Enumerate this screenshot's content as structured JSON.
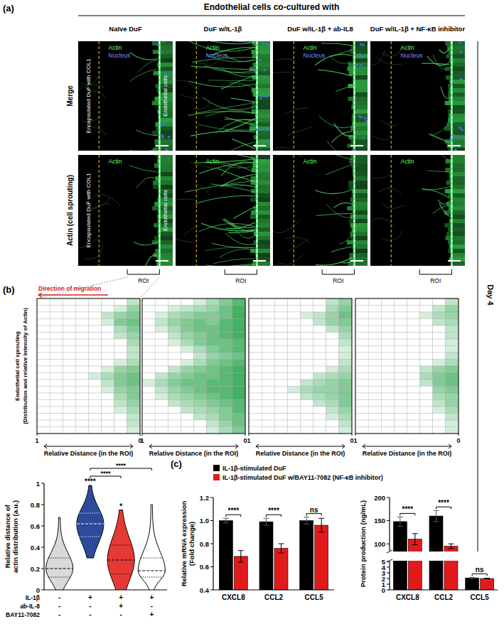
{
  "figure": {
    "title": "Endothelial cells co-cultured with",
    "panel_labels": [
      "(a)",
      "(b)",
      "(c)"
    ],
    "columns": [
      "Naïve DuF",
      "DuF w/IL-1β",
      "DuF w/IL-1β + ab-IL8",
      "DuF w/IL-1β + NF-κB inhibitor"
    ],
    "rows": [
      "Merge",
      "Actin (cell sprouting)"
    ],
    "channels": [
      "Actin",
      "Nucleus"
    ],
    "left_region": "Encapsulated DuF with COL1",
    "right_region": "Endothelial cells",
    "roi": "ROI",
    "timepoint": "Day 4"
  },
  "chart_data": [
    {
      "type": "heatmap",
      "color": "#2ea84f",
      "zlim": [
        0,
        1
      ],
      "xlim": [
        1,
        0
      ],
      "xticks": [
        1,
        0
      ],
      "xlabel": "Relative Distance (in the ROI)",
      "ylabel": [
        "Endothelial cell sprouting",
        "(Distribution and relative intensity of Actin)"
      ],
      "annotation": "Direction of migration",
      "cells": [
        [
          0,
          0,
          0,
          0,
          0,
          0,
          0,
          0.3
        ],
        [
          0,
          0,
          0,
          0,
          0,
          0,
          0.2,
          0.5
        ],
        [
          0,
          0,
          0,
          0,
          0,
          0.3,
          0.5,
          0.6
        ],
        [
          0,
          0,
          0,
          0,
          0,
          0.2,
          0.6,
          0.7
        ],
        [
          0,
          0,
          0,
          0,
          0,
          0,
          0.4,
          0.6
        ],
        [
          0,
          0,
          0,
          0,
          0,
          0,
          0.3,
          0.5
        ],
        [
          0,
          0,
          0,
          0,
          0,
          0,
          0,
          0.4
        ],
        [
          0,
          0,
          0,
          0,
          0,
          0,
          0,
          0.3
        ],
        [
          0,
          0,
          0,
          0,
          0,
          0,
          0,
          0.3
        ],
        [
          0,
          0,
          0,
          0,
          0,
          0,
          0.2,
          0.4
        ],
        [
          0,
          0,
          0,
          0,
          0,
          0.2,
          0.5,
          0.6
        ],
        [
          0,
          0,
          0,
          0,
          0.2,
          0.4,
          0.6,
          0.7
        ],
        [
          0,
          0,
          0,
          0,
          0,
          0.3,
          0.6,
          0.7
        ],
        [
          0,
          0,
          0,
          0,
          0,
          0.2,
          0.5,
          0.6
        ],
        [
          0,
          0,
          0,
          0,
          0,
          0,
          0.4,
          0.6
        ],
        [
          0,
          0,
          0,
          0,
          0,
          0,
          0.3,
          0.5
        ],
        [
          0,
          0,
          0,
          0,
          0,
          0,
          0.2,
          0.4
        ],
        [
          0,
          0,
          0,
          0,
          0,
          0,
          0,
          0.3
        ],
        [
          0,
          0,
          0,
          0,
          0,
          0,
          0,
          0.3
        ],
        [
          0,
          0,
          0,
          0,
          0,
          0,
          0,
          0.2
        ]
      ]
    },
    {
      "type": "heatmap",
      "color": "#2ea84f",
      "zlim": [
        0,
        1
      ],
      "xlim": [
        1,
        0
      ],
      "xticks": [
        1,
        0
      ],
      "xlabel": "Relative Distance (in the ROI)",
      "cells": [
        [
          0,
          0,
          0,
          0,
          0.2,
          0.4,
          0.6,
          0.8
        ],
        [
          0,
          0,
          0.2,
          0.3,
          0.4,
          0.5,
          0.7,
          0.9
        ],
        [
          0,
          0.2,
          0.4,
          0.5,
          0.6,
          0.6,
          0.7,
          0.9
        ],
        [
          0,
          0.3,
          0.5,
          0.6,
          0.7,
          0.6,
          0.8,
          0.9
        ],
        [
          0,
          0.2,
          0.4,
          0.6,
          0.7,
          0.7,
          0.8,
          0.9
        ],
        [
          0,
          0,
          0.3,
          0.5,
          0.6,
          0.7,
          0.8,
          0.9
        ],
        [
          0,
          0,
          0.2,
          0.4,
          0.6,
          0.7,
          0.7,
          0.8
        ],
        [
          0,
          0,
          0,
          0.2,
          0.4,
          0.6,
          0.7,
          0.8
        ],
        [
          0,
          0,
          0,
          0,
          0.3,
          0.5,
          0.6,
          0.7
        ],
        [
          0,
          0,
          0,
          0.2,
          0.4,
          0.6,
          0.7,
          0.8
        ],
        [
          0,
          0,
          0.3,
          0.5,
          0.6,
          0.7,
          0.8,
          0.9
        ],
        [
          0,
          0.3,
          0.5,
          0.6,
          0.7,
          0.7,
          0.8,
          0.9
        ],
        [
          0.2,
          0.4,
          0.6,
          0.7,
          0.7,
          0.8,
          0.8,
          0.9
        ],
        [
          0,
          0.3,
          0.5,
          0.6,
          0.7,
          0.8,
          0.8,
          0.9
        ],
        [
          0,
          0.2,
          0.4,
          0.5,
          0.6,
          0.7,
          0.8,
          0.9
        ],
        [
          0,
          0,
          0.3,
          0.4,
          0.5,
          0.6,
          0.7,
          0.8
        ],
        [
          0,
          0,
          0,
          0.3,
          0.4,
          0.5,
          0.6,
          0.8
        ],
        [
          0,
          0,
          0,
          0,
          0.3,
          0.4,
          0.6,
          0.7
        ],
        [
          0,
          0,
          0,
          0,
          0,
          0.3,
          0.5,
          0.7
        ],
        [
          0,
          0,
          0,
          0,
          0,
          0.2,
          0.4,
          0.6
        ]
      ]
    },
    {
      "type": "heatmap",
      "color": "#2ea84f",
      "zlim": [
        0,
        1
      ],
      "xlim": [
        1,
        0
      ],
      "xticks": [
        1,
        0
      ],
      "xlabel": "Relative Distance (in the ROI)",
      "cells": [
        [
          0,
          0,
          0,
          0,
          0,
          0,
          0.3,
          0.5
        ],
        [
          0,
          0,
          0,
          0,
          0,
          0,
          0.4,
          0.6
        ],
        [
          0,
          0,
          0,
          0,
          0.2,
          0.3,
          0.5,
          0.7
        ],
        [
          0,
          0,
          0,
          0,
          0,
          0.3,
          0.5,
          0.6
        ],
        [
          0,
          0,
          0,
          0,
          0,
          0,
          0.3,
          0.5
        ],
        [
          0,
          0,
          0,
          0,
          0,
          0,
          0,
          0.4
        ],
        [
          0,
          0,
          0,
          0,
          0,
          0,
          0,
          0.3
        ],
        [
          0,
          0,
          0,
          0,
          0,
          0,
          0,
          0.2
        ],
        [
          0,
          0,
          0,
          0,
          0,
          0,
          0,
          0.2
        ],
        [
          0,
          0,
          0,
          0,
          0,
          0,
          0,
          0.3
        ],
        [
          0,
          0,
          0,
          0,
          0,
          0,
          0.2,
          0.4
        ],
        [
          0,
          0,
          0,
          0,
          0,
          0.3,
          0.4,
          0.5
        ],
        [
          0,
          0,
          0,
          0,
          0.3,
          0.4,
          0.5,
          0.6
        ],
        [
          0,
          0,
          0,
          0.2,
          0.4,
          0.5,
          0.5,
          0.6
        ],
        [
          0,
          0,
          0,
          0,
          0.3,
          0.4,
          0.5,
          0.6
        ],
        [
          0,
          0,
          0,
          0,
          0,
          0.3,
          0.4,
          0.6
        ],
        [
          0,
          0,
          0,
          0,
          0,
          0,
          0.3,
          0.5
        ],
        [
          0,
          0,
          0,
          0,
          0,
          0,
          0.2,
          0.4
        ],
        [
          0,
          0,
          0,
          0,
          0,
          0,
          0,
          0.3
        ],
        [
          0,
          0,
          0,
          0,
          0,
          0,
          0,
          0.2
        ]
      ]
    },
    {
      "type": "heatmap",
      "color": "#2ea84f",
      "zlim": [
        0,
        1
      ],
      "xlim": [
        1,
        0
      ],
      "xticks": [
        1,
        0
      ],
      "xlabel": "Relative Distance (in the ROI)",
      "cells": [
        [
          0,
          0,
          0,
          0,
          0,
          0,
          0,
          0.3
        ],
        [
          0,
          0,
          0,
          0,
          0,
          0,
          0.3,
          0.5
        ],
        [
          0,
          0,
          0,
          0,
          0,
          0.2,
          0.4,
          0.5
        ],
        [
          0,
          0,
          0,
          0,
          0,
          0,
          0.3,
          0.4
        ],
        [
          0,
          0,
          0,
          0,
          0,
          0,
          0,
          0.3
        ],
        [
          0,
          0,
          0,
          0,
          0,
          0,
          0,
          0.3
        ],
        [
          0,
          0,
          0,
          0,
          0,
          0,
          0,
          0.2
        ],
        [
          0,
          0,
          0,
          0,
          0,
          0,
          0,
          0.2
        ],
        [
          0,
          0,
          0,
          0,
          0,
          0,
          0,
          0.3
        ],
        [
          0,
          0,
          0,
          0,
          0,
          0,
          0.2,
          0.4
        ],
        [
          0,
          0,
          0,
          0,
          0,
          0.3,
          0.5,
          0.6
        ],
        [
          0,
          0,
          0,
          0,
          0,
          0.4,
          0.6,
          0.7
        ],
        [
          0,
          0,
          0,
          0,
          0,
          0.3,
          0.6,
          0.7
        ],
        [
          0,
          0,
          0,
          0,
          0,
          0,
          0.5,
          0.6
        ],
        [
          0,
          0,
          0,
          0,
          0,
          0,
          0.4,
          0.5
        ],
        [
          0,
          0,
          0,
          0,
          0,
          0,
          0.3,
          0.5
        ],
        [
          0,
          0,
          0,
          0,
          0,
          0,
          0.2,
          0.4
        ],
        [
          0,
          0,
          0,
          0,
          0,
          0,
          0,
          0.3
        ],
        [
          0,
          0,
          0,
          0,
          0,
          0,
          0,
          0.2
        ],
        [
          0,
          0,
          0,
          0,
          0,
          0,
          0,
          0.2
        ]
      ]
    },
    {
      "type": "violin",
      "ylim": [
        0,
        1
      ],
      "yticks": [
        0,
        0.2,
        0.4,
        0.6,
        0.8,
        1
      ],
      "ylabel": [
        "Relative distance of",
        "actin distribution (a.u.)"
      ],
      "violins": [
        {
          "color": "#d9d9d9",
          "min": 0,
          "q1": 0.12,
          "median": 0.2,
          "q3": 0.3,
          "max": 0.68
        },
        {
          "color": "#2d4b9b",
          "min": 0.3,
          "q1": 0.5,
          "median": 0.62,
          "q3": 0.72,
          "max": 0.98
        },
        {
          "color": "#e53935",
          "min": 0,
          "q1": 0.15,
          "median": 0.28,
          "q3": 0.42,
          "max": 0.75
        },
        {
          "color": "#ffffff",
          "min": 0,
          "q1": 0.12,
          "median": 0.18,
          "q3": 0.3,
          "max": 0.8
        }
      ],
      "conditions": [
        {
          "label": "IL-1β",
          "values": [
            "-",
            "+",
            "+",
            "+"
          ]
        },
        {
          "label": "ab-IL-8",
          "values": [
            "-",
            "-",
            "+",
            "-"
          ]
        },
        {
          "label": "BAY11-7082",
          "values": [
            "-",
            "-",
            "-",
            "+"
          ]
        }
      ],
      "annotations": [
        {
          "text": "****",
          "category": 1
        },
        {
          "text": "*",
          "category": 2
        }
      ],
      "comparisons": [
        {
          "from": 1,
          "to": 2,
          "text": "****"
        },
        {
          "from": 1,
          "to": 3,
          "text": "****"
        }
      ]
    },
    {
      "type": "bar",
      "categories": [
        "CXCL8",
        "CCL2",
        "CCL5"
      ],
      "ylim": [
        0.4,
        1.2
      ],
      "yticks": [
        0.4,
        0.6,
        0.8,
        {
          "value": 1,
          "label": "1.0"
        },
        1.2
      ],
      "ylabel": [
        "Relative mRNA expression",
        "(Fold change)"
      ],
      "legend": "top",
      "series": [
        {
          "name": "IL-1β-stimulated DuF",
          "color": "#000000",
          "values": [
            1,
            0.99,
            1
          ],
          "errors": [
            0.02,
            0.03,
            0.03
          ]
        },
        {
          "name": "IL-1β-stimulated DuF w/BAY11-7082 (NF-κB inhibitor)",
          "color": "#e31a1c",
          "values": [
            0.69,
            0.76,
            0.96
          ],
          "errors": [
            0.05,
            0.04,
            0.06
          ]
        }
      ],
      "annotations": [
        "****",
        "****",
        "ns"
      ]
    },
    {
      "type": "bar",
      "categories": [
        "CXCL8",
        "CCL2",
        "CCL5"
      ],
      "ylim": [
        0,
        200
      ],
      "axis_break": [
        5,
        85
      ],
      "yticks": [
        0,
        1,
        2,
        3,
        4,
        5,
        100,
        150,
        200
      ],
      "ylabel": "Protein production (ng/mL)",
      "series": [
        {
          "name": "IL-1β-stimulated DuF",
          "color": "#000000",
          "values": [
            148,
            160,
            2.1
          ],
          "errors": [
            10,
            12,
            0.1
          ]
        },
        {
          "name": "IL-1β-stimulated DuF w/BAY11-7082 (NF-κB inhibitor)",
          "color": "#e31a1c",
          "values": [
            110,
            95,
            2.0
          ],
          "errors": [
            12,
            5,
            0.05
          ]
        }
      ],
      "annotations": [
        "****",
        "****",
        "ns"
      ]
    }
  ]
}
